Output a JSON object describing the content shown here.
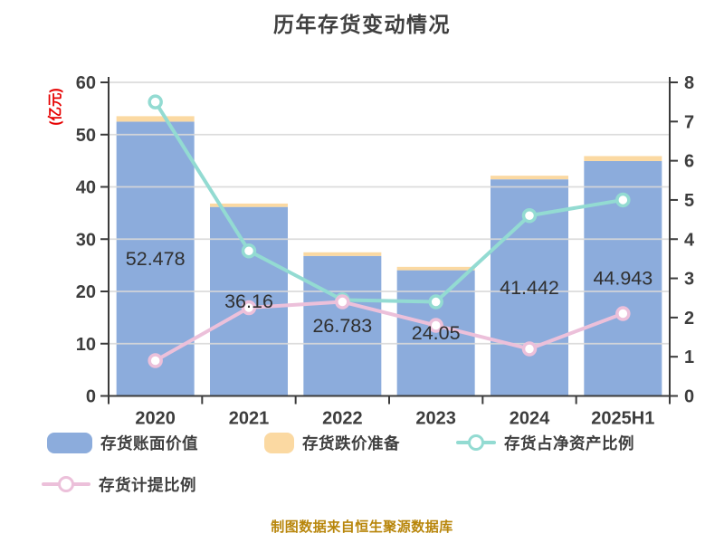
{
  "page_title": "历年存货变动情况",
  "footer_note": "制图数据来自恒生聚源数据库",
  "colors": {
    "bar_book_value": "#8cacdc",
    "bar_provision": "#fbd9a2",
    "line_net_asset_ratio": "#93dbd2",
    "line_provision_ratio": "#ecc0da",
    "grid": "#d9d9d9",
    "axis": "#3b3b3b",
    "axis_text": "#3d3d3d",
    "bar_label_text": "#303030",
    "left_axis_unit_color": "#e60000",
    "title_text": "#3f3f3f",
    "footer_text": "#b8860b"
  },
  "chart_data": {
    "type": "combo-bar-line",
    "title": "历年存货变动情况",
    "footer": "制图数据来自恒生聚源数据库",
    "categories": [
      "2020",
      "2021",
      "2022",
      "2023",
      "2024",
      "2025H1"
    ],
    "bar_series": [
      {
        "name": "存货账面价值",
        "axis": "left",
        "color": "#8cacdc",
        "values": [
          52.478,
          36.16,
          26.783,
          24.05,
          41.442,
          44.943
        ],
        "show_labels": true
      },
      {
        "name": "存货跌价准备",
        "axis": "left",
        "color": "#fbd9a2",
        "stacked_on": "存货账面价值",
        "values": [
          1.05,
          0.65,
          0.7,
          0.65,
          0.7,
          0.95
        ],
        "show_labels": false,
        "note": "values estimated from thin stacked caps, no data labels shown"
      }
    ],
    "line_series": [
      {
        "name": "存货占净资产比例",
        "axis": "right",
        "color": "#93dbd2",
        "values": [
          7.5,
          3.7,
          2.45,
          2.4,
          4.6,
          5.0
        ]
      },
      {
        "name": "存货计提比例",
        "axis": "right",
        "color": "#ecc0da",
        "values": [
          0.9,
          2.25,
          2.4,
          1.8,
          1.2,
          2.1
        ]
      }
    ],
    "left_axis": {
      "label": "(亿元)",
      "min": 0,
      "max": 60,
      "step": 10
    },
    "right_axis": {
      "min": 0,
      "max": 8,
      "step": 1
    },
    "grid": "horizontal-major",
    "legend_position": "bottom"
  }
}
